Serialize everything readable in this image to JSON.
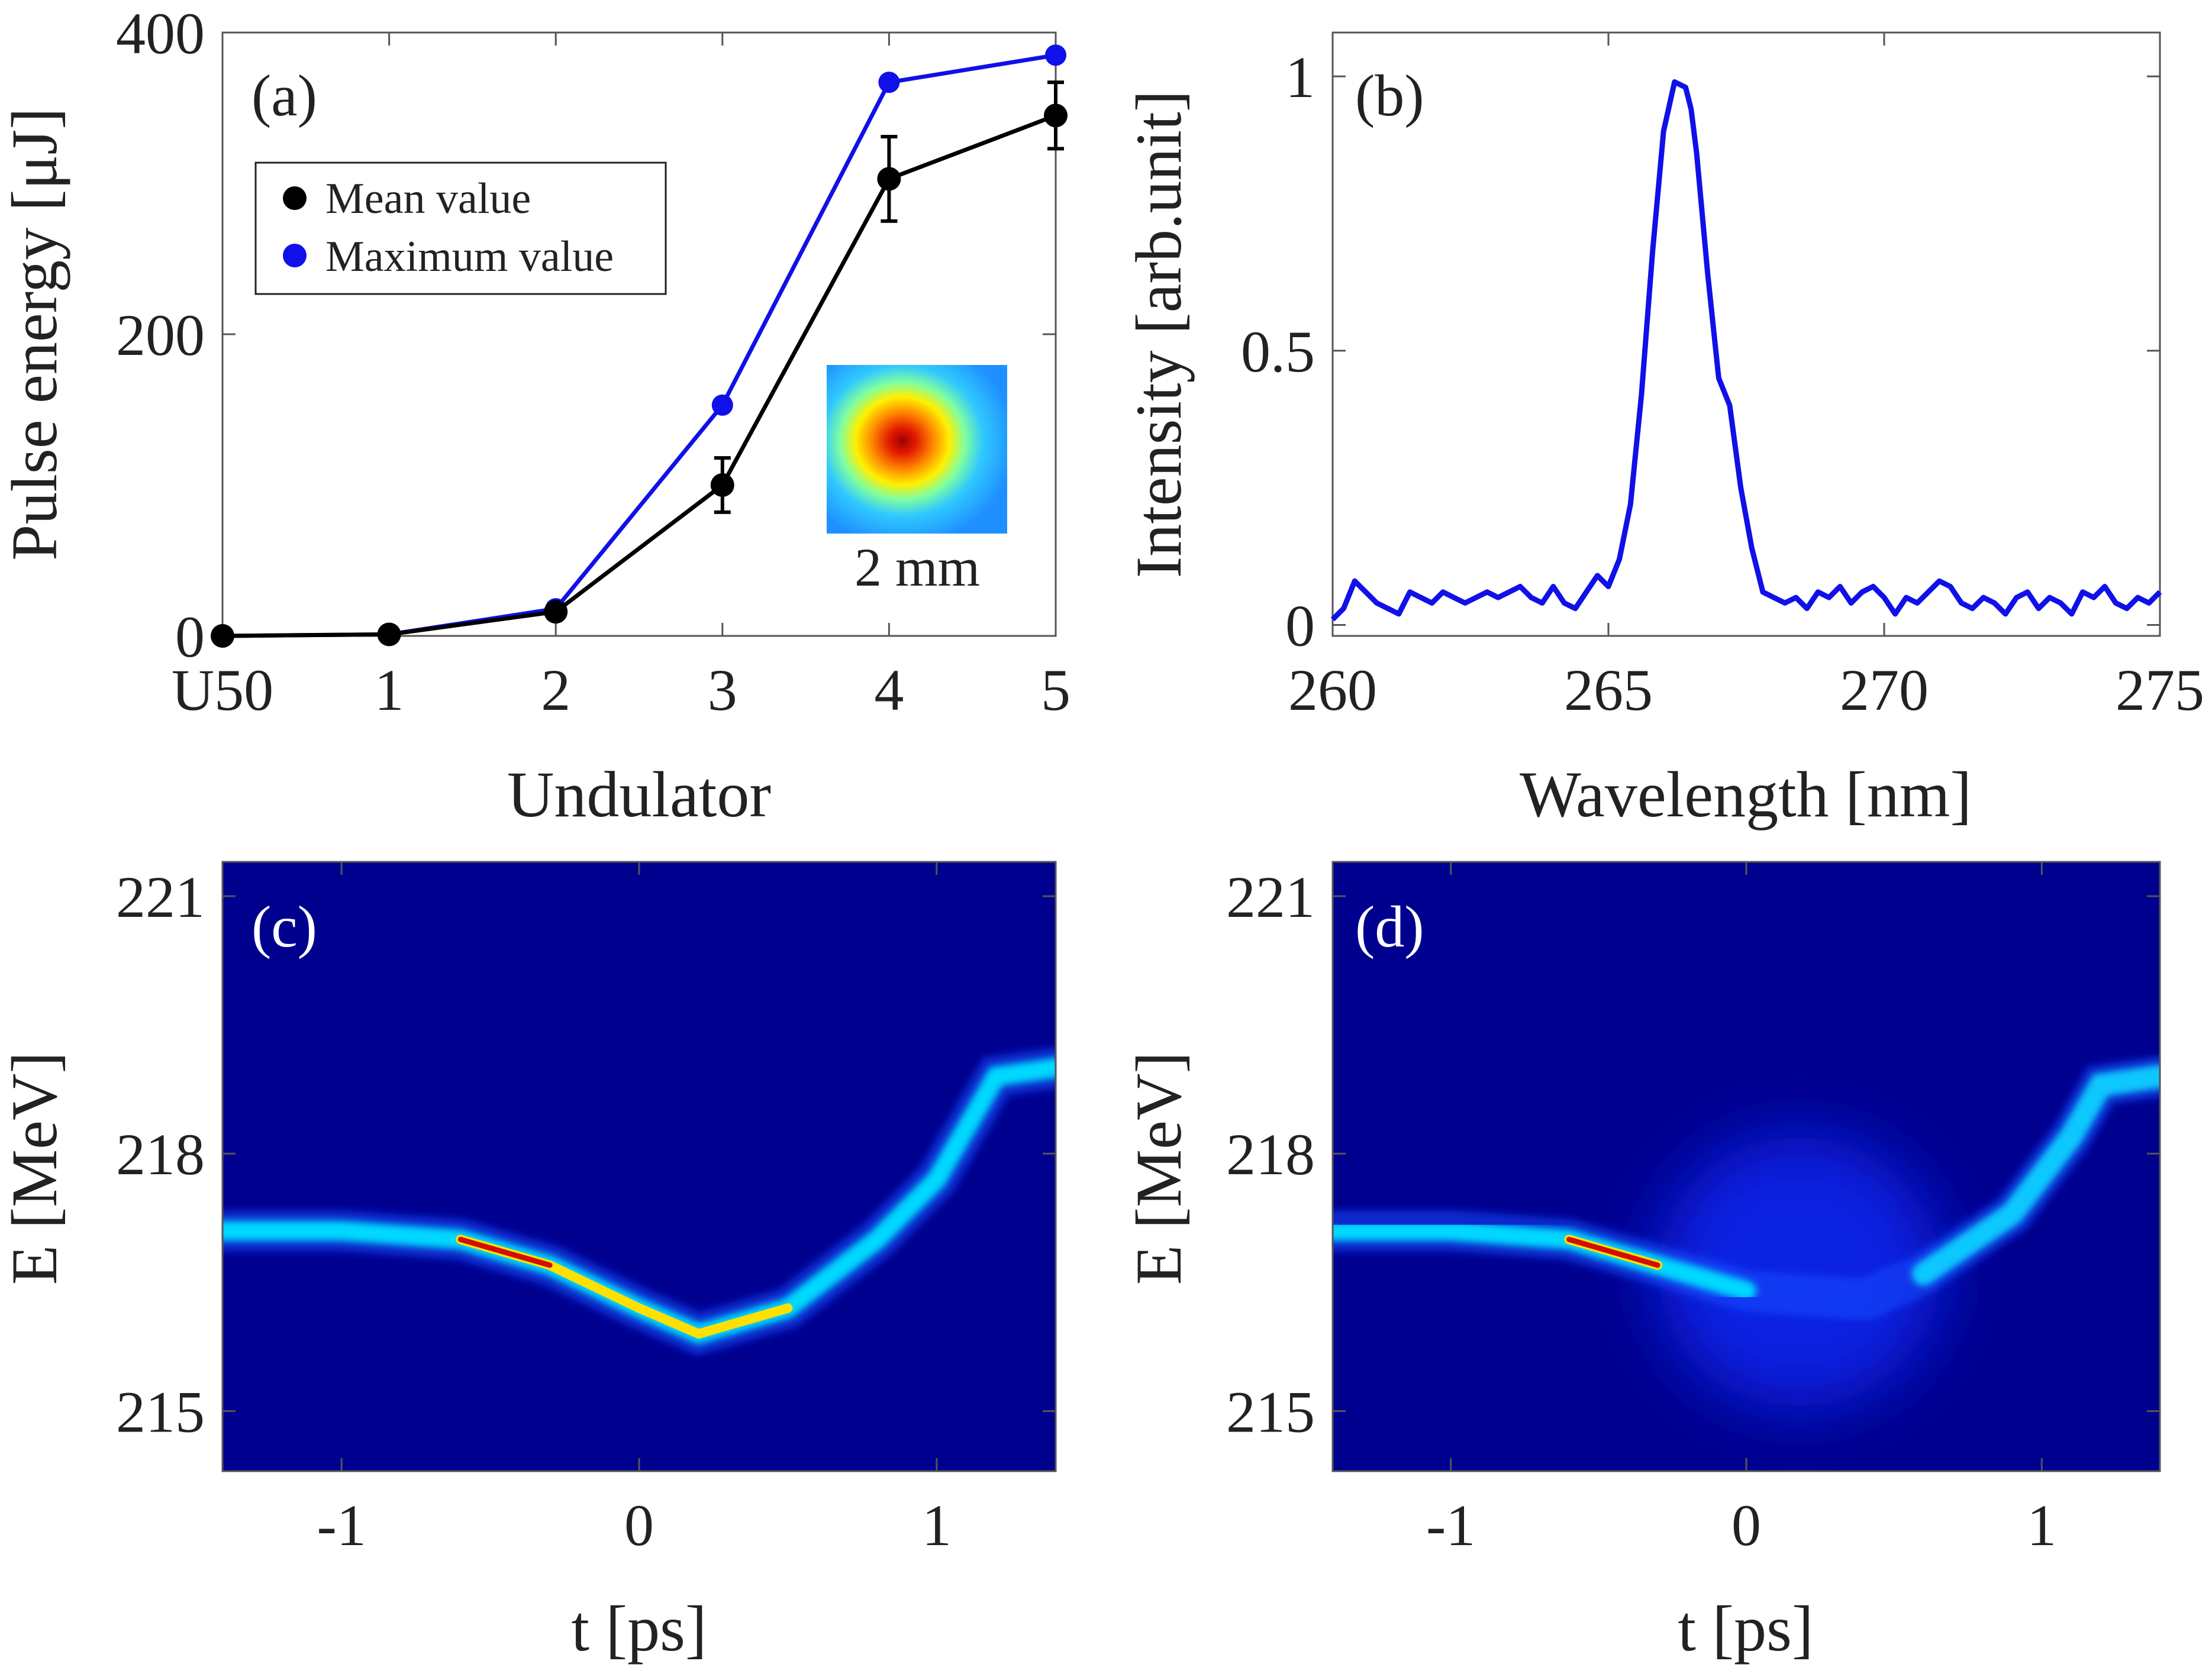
{
  "chart_data": [
    {
      "panel": "(a)",
      "type": "line",
      "xlabel": "Undulator",
      "ylabel": "Pulse energy [μJ]",
      "categories": [
        "U50",
        "1",
        "2",
        "3",
        "4",
        "5"
      ],
      "ylim": [
        0,
        400
      ],
      "yticks": [
        0,
        200,
        400
      ],
      "series": [
        {
          "name": "Mean value",
          "color": "#000000",
          "values": [
            0,
            1,
            16,
            100,
            303,
            345
          ],
          "errors": [
            0,
            0,
            0,
            18,
            28,
            22
          ]
        },
        {
          "name": "Maximum value",
          "color": "#1010e8",
          "values": [
            0,
            1,
            18,
            153,
            367,
            385
          ]
        }
      ],
      "legend": [
        "Mean value",
        "Maximum value"
      ],
      "legend_position": "top-left",
      "inset": {
        "label": "2 mm",
        "colormap": "jet"
      }
    },
    {
      "panel": "(b)",
      "type": "line",
      "xlabel": "Wavelength [nm]",
      "ylabel": "Intensity [arb.unit]",
      "xlim": [
        260,
        275
      ],
      "xticks": [
        260,
        265,
        270,
        275
      ],
      "ylim": [
        -0.02,
        1.08
      ],
      "yticks": [
        0,
        0.5,
        1
      ],
      "ytick_labels": [
        "0",
        "0.5",
        "1"
      ],
      "color": "#1010e8",
      "x": [
        260.0,
        260.2,
        260.4,
        260.6,
        260.8,
        261.0,
        261.2,
        261.4,
        261.6,
        261.8,
        262.0,
        262.2,
        262.4,
        262.6,
        262.8,
        263.0,
        263.2,
        263.4,
        263.6,
        263.8,
        264.0,
        264.2,
        264.4,
        264.6,
        264.8,
        265.0,
        265.2,
        265.4,
        265.6,
        265.8,
        266.0,
        266.2,
        266.4,
        266.5,
        266.6,
        266.8,
        267.0,
        267.2,
        267.4,
        267.6,
        267.8,
        268.0,
        268.2,
        268.4,
        268.6,
        268.8,
        269.0,
        269.2,
        269.4,
        269.6,
        269.8,
        270.0,
        270.2,
        270.4,
        270.6,
        270.8,
        271.0,
        271.2,
        271.4,
        271.6,
        271.8,
        272.0,
        272.2,
        272.4,
        272.6,
        272.8,
        273.0,
        273.2,
        273.4,
        273.6,
        273.8,
        274.0,
        274.2,
        274.4,
        274.6,
        274.8,
        275.0
      ],
      "y": [
        0.01,
        0.03,
        0.08,
        0.06,
        0.04,
        0.03,
        0.02,
        0.06,
        0.05,
        0.04,
        0.06,
        0.05,
        0.04,
        0.05,
        0.06,
        0.05,
        0.06,
        0.07,
        0.05,
        0.04,
        0.07,
        0.04,
        0.03,
        0.06,
        0.09,
        0.07,
        0.12,
        0.22,
        0.42,
        0.68,
        0.9,
        0.99,
        0.98,
        0.94,
        0.86,
        0.64,
        0.45,
        0.4,
        0.25,
        0.14,
        0.06,
        0.05,
        0.04,
        0.05,
        0.03,
        0.06,
        0.05,
        0.07,
        0.04,
        0.06,
        0.07,
        0.05,
        0.02,
        0.05,
        0.04,
        0.06,
        0.08,
        0.07,
        0.04,
        0.03,
        0.05,
        0.04,
        0.02,
        0.05,
        0.06,
        0.03,
        0.05,
        0.04,
        0.02,
        0.06,
        0.05,
        0.07,
        0.04,
        0.03,
        0.05,
        0.04,
        0.06
      ]
    },
    {
      "panel": "(c)",
      "type": "heatmap",
      "xlabel": "t [ps]",
      "ylabel": "E [MeV]",
      "xlim": [
        -1.4,
        1.4
      ],
      "xticks": [
        -1,
        0,
        1
      ],
      "ylim": [
        214.3,
        221.4
      ],
      "yticks": [
        215,
        218,
        221
      ],
      "colormap": "jet",
      "trace": [
        {
          "t": -1.4,
          "E": 217.1
        },
        {
          "t": -1.0,
          "E": 217.1
        },
        {
          "t": -0.6,
          "E": 217.0
        },
        {
          "t": -0.3,
          "E": 216.7
        },
        {
          "t": 0.0,
          "E": 216.2
        },
        {
          "t": 0.2,
          "E": 215.9
        },
        {
          "t": 0.5,
          "E": 216.2
        },
        {
          "t": 0.8,
          "E": 217.0
        },
        {
          "t": 1.0,
          "E": 217.7
        },
        {
          "t": 1.2,
          "E": 218.9
        },
        {
          "t": 1.4,
          "E": 219.0
        }
      ]
    },
    {
      "panel": "(d)",
      "type": "heatmap",
      "xlabel": "t [ps]",
      "ylabel": "E [MeV]",
      "xlim": [
        -1.4,
        1.4
      ],
      "xticks": [
        -1,
        0,
        1
      ],
      "ylim": [
        214.3,
        221.4
      ],
      "yticks": [
        215,
        218,
        221
      ],
      "colormap": "jet",
      "trace": [
        {
          "t": -1.4,
          "E": 217.1
        },
        {
          "t": -1.0,
          "E": 217.1
        },
        {
          "t": -0.6,
          "E": 217.0
        },
        {
          "t": -0.3,
          "E": 216.7
        },
        {
          "t": 0.0,
          "E": 216.4
        },
        {
          "t": 0.4,
          "E": 216.3
        },
        {
          "t": 0.6,
          "E": 216.6
        },
        {
          "t": 0.9,
          "E": 217.3
        },
        {
          "t": 1.1,
          "E": 218.2
        },
        {
          "t": 1.2,
          "E": 218.8
        },
        {
          "t": 1.4,
          "E": 218.9
        }
      ]
    }
  ]
}
